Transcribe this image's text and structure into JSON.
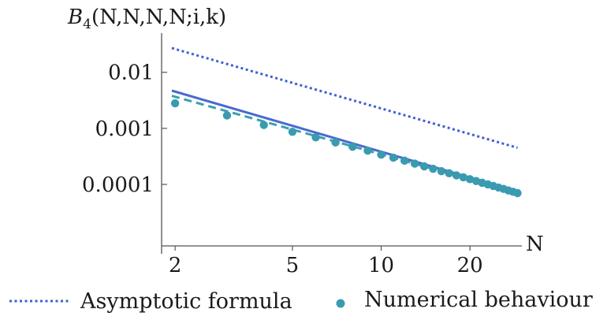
{
  "chart_data": {
    "type": "scatter",
    "scale": "log-log",
    "ylabel": "B4(N,N,N,N;i,k)",
    "xlabel": "N",
    "xlim": [
      1.8,
      30
    ],
    "ylim": [
      8e-06,
      0.05
    ],
    "x_ticks": [
      {
        "value": 2,
        "label": "2"
      },
      {
        "value": 5,
        "label": "5"
      },
      {
        "value": 10,
        "label": "10"
      },
      {
        "value": 20,
        "label": "20"
      }
    ],
    "y_ticks": [
      {
        "value": 0.01,
        "label": "0.01"
      },
      {
        "value": 0.001,
        "label": "0.001"
      },
      {
        "value": 0.0001,
        "label": "0.0001"
      }
    ],
    "series": [
      {
        "name": "Asymptotic formula",
        "style": "dotted",
        "color": "#4060d0",
        "x": [
          1.95,
          29
        ],
        "y": [
          0.027,
          0.00045
        ]
      },
      {
        "style": "solid",
        "color": "#4a6ad0",
        "x": [
          1.95,
          29
        ],
        "y": [
          0.0047,
          7.5e-05
        ]
      },
      {
        "style": "dashed",
        "color": "#3aa0b0",
        "x": [
          1.95,
          29
        ],
        "y": [
          0.0038,
          7.2e-05
        ]
      },
      {
        "name": "Numerical behaviour",
        "style": "points",
        "color": "#3a9bb0",
        "x": [
          2,
          3,
          4,
          5,
          6,
          7,
          8,
          9,
          10,
          11,
          12,
          13,
          14,
          15,
          16,
          17,
          18,
          19,
          20,
          21,
          22,
          23,
          24,
          25,
          26,
          27,
          28,
          29
        ],
        "y": [
          0.0028,
          0.0017,
          0.00115,
          0.00087,
          0.00069,
          0.00056,
          0.00047,
          0.0004,
          0.00034,
          0.0003,
          0.000265,
          0.000235,
          0.00021,
          0.00019,
          0.000172,
          0.000158,
          0.000145,
          0.000134,
          0.000124,
          0.000115,
          0.000107,
          0.0001,
          9.4e-05,
          8.8e-05,
          8.3e-05,
          7.8e-05,
          7.4e-05,
          7e-05
        ]
      }
    ],
    "legend": {
      "placement": "bottom",
      "entries": [
        {
          "label": "Asymptotic formula",
          "marker": "dotted-line"
        },
        {
          "label": "Numerical behaviour",
          "marker": "dot"
        }
      ]
    }
  }
}
